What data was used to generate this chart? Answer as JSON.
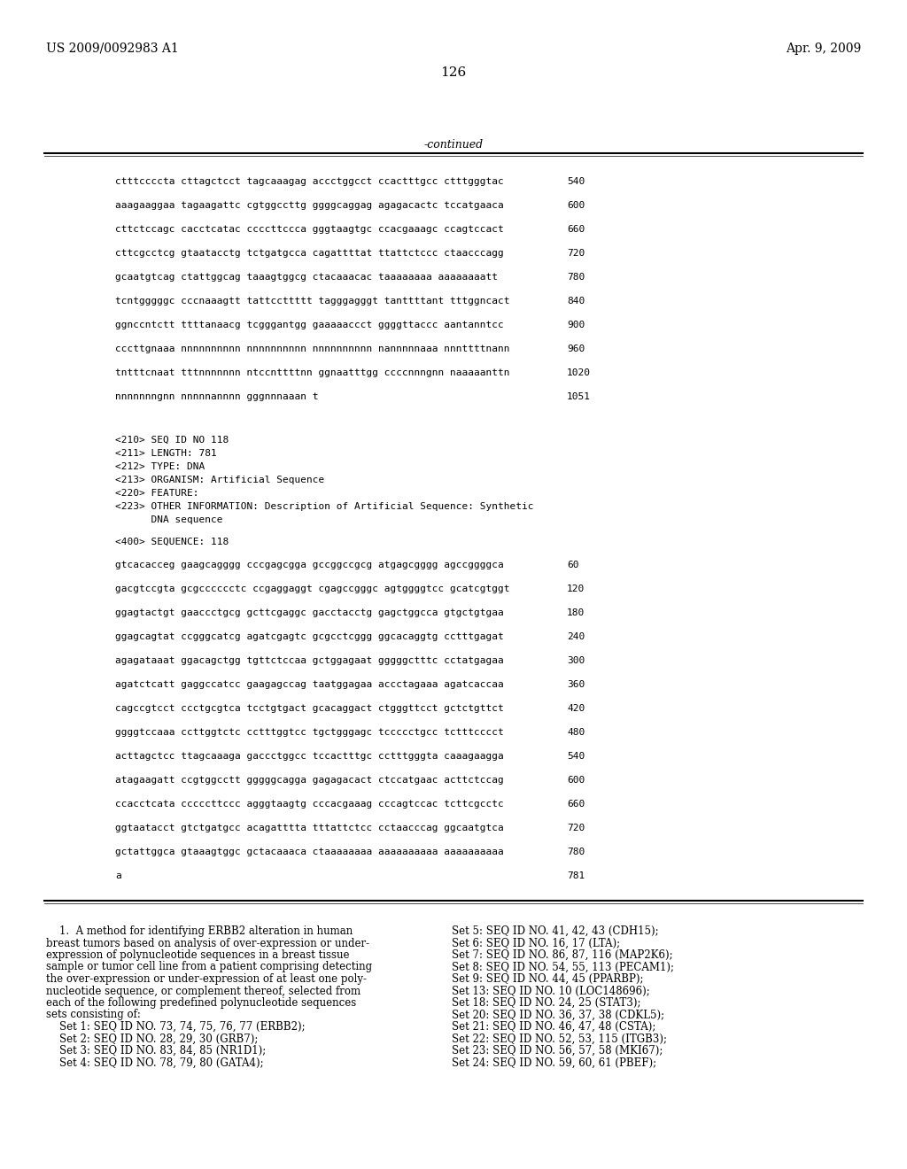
{
  "header_left": "US 2009/0092983 A1",
  "header_right": "Apr. 9, 2009",
  "page_number": "126",
  "continued_label": "-continued",
  "background_color": "#ffffff",
  "text_color": "#000000",
  "sequence_lines_top": [
    [
      "ctttccccta cttagctcct tagcaaagag accctggcct ccactttgcc ctttgggtac",
      "540"
    ],
    [
      "aaagaaggaa tagaagattc cgtggccttg ggggcaggag agagacactc tccatgaaca",
      "600"
    ],
    [
      "cttctccagc cacctcatac ccccttccca gggtaagtgc ccacgaaagc ccagtccact",
      "660"
    ],
    [
      "cttcgcctcg gtaatacctg tctgatgcca cagattttat ttattctccc ctaacccagg",
      "720"
    ],
    [
      "gcaatgtcag ctattggcag taaagtggcg ctacaaacac taaaaaaaa aaaaaaaatt",
      "780"
    ],
    [
      "tcntgggggc cccnaaagtt tattccttttt tagggagggt tanttttant tttggncact",
      "840"
    ],
    [
      "ggnccntctt ttttanaacg tcgggantgg gaaaaaccct ggggttaccc aantanntcc",
      "900"
    ],
    [
      "cccttgnaaa nnnnnnnnnn nnnnnnnnnn nnnnnnnnnn nannnnnaaa nnnttttnann",
      "960"
    ],
    [
      "tntttcnaat tttnnnnnnn ntccnttttnn ggnaatttgg ccccnnngnn naaaaanttn",
      "1020"
    ],
    [
      "nnnnnnngnn nnnnnannnn gggnnnaaan t",
      "1051"
    ]
  ],
  "metadata_lines": [
    "<210> SEQ ID NO 118",
    "<211> LENGTH: 781",
    "<212> TYPE: DNA",
    "<213> ORGANISM: Artificial Sequence",
    "<220> FEATURE:",
    "<223> OTHER INFORMATION: Description of Artificial Sequence: Synthetic",
    "      DNA sequence"
  ],
  "sequence_label": "<400> SEQUENCE: 118",
  "sequence_lines_bottom": [
    [
      "gtcacacceg gaagcagggg cccgagcgga gccggccgcg atgagcgggg agccggggca",
      "60"
    ],
    [
      "gacgtccgta gcgcccccctc ccgaggaggt cgagccgggc agtggggtcc gcatcgtggt",
      "120"
    ],
    [
      "ggagtactgt gaaccctgcg gcttcgaggc gacctacctg gagctggcca gtgctgtgaa",
      "180"
    ],
    [
      "ggagcagtat ccgggcatcg agatcgagtc gcgcctcggg ggcacaggtg cctttgagat",
      "240"
    ],
    [
      "agagataaat ggacagctgg tgttctccaa gctggagaat gggggctttc cctatgagaa",
      "300"
    ],
    [
      "agatctcatt gaggccatcc gaagagccag taatggagaa accctagaaa agatcaccaa",
      "360"
    ],
    [
      "cagccgtcct ccctgcgtca tcctgtgact gcacaggact ctgggttcct gctctgttct",
      "420"
    ],
    [
      "ggggtccaaa ccttggtctc cctttggtcc tgctgggagc tccccctgcc tctttcccct",
      "480"
    ],
    [
      "acttagctcc ttagcaaaga gaccctggcc tccactttgc cctttgggta caaagaagga",
      "540"
    ],
    [
      "atagaagatt ccgtggcctt gggggcagga gagagacact ctccatgaac acttctccag",
      "600"
    ],
    [
      "ccacctcata cccccttccc agggtaagtg cccacgaaag cccagtccac tcttcgcctc",
      "660"
    ],
    [
      "ggtaatacct gtctgatgcc acagatttta tttattctcc cctaacccag ggcaatgtca",
      "720"
    ],
    [
      "gctattggca gtaaagtggc gctacaaaca ctaaaaaaaa aaaaaaaaaa aaaaaaaaaa",
      "780"
    ],
    [
      "a",
      "781"
    ]
  ],
  "claims_left": [
    "    1.  A method for identifying ERBB2 alteration in human",
    "breast tumors based on analysis of over-expression or under-",
    "expression of polynucleotide sequences in a breast tissue",
    "sample or tumor cell line from a patient comprising detecting",
    "the over-expression or under-expression of at least one poly-",
    "nucleotide sequence, or complement thereof, selected from",
    "each of the following predefined polynucleotide sequences",
    "sets consisting of:",
    "    Set 1: SEQ ID NO. 73, 74, 75, 76, 77 (ERBB2);",
    "    Set 2: SEQ ID NO. 28, 29, 30 (GRB7);",
    "    Set 3: SEQ ID NO. 83, 84, 85 (NR1D1);",
    "    Set 4: SEQ ID NO. 78, 79, 80 (GATA4);"
  ],
  "claims_right": [
    "Set 5: SEQ ID NO. 41, 42, 43 (CDH15);",
    "Set 6: SEQ ID NO. 16, 17 (LTA);",
    "Set 7: SEQ ID NO. 86, 87, 116 (MAP2K6);",
    "Set 8: SEQ ID NO. 54, 55, 113 (PECAM1);",
    "Set 9: SEQ ID NO. 44, 45 (PPARBP);",
    "Set 13: SEQ ID NO. 10 (LOC148696);",
    "Set 18: SEQ ID NO. 24, 25 (STAT3);",
    "Set 20: SEQ ID NO. 36, 37, 38 (CDKL5);",
    "Set 21: SEQ ID NO. 46, 47, 48 (CSTA);",
    "Set 22: SEQ ID NO. 52, 53, 115 (ITGB3);",
    "Set 23: SEQ ID NO. 56, 57, 58 (MKI67);",
    "Set 24: SEQ ID NO. 59, 60, 61 (PBEF);"
  ]
}
